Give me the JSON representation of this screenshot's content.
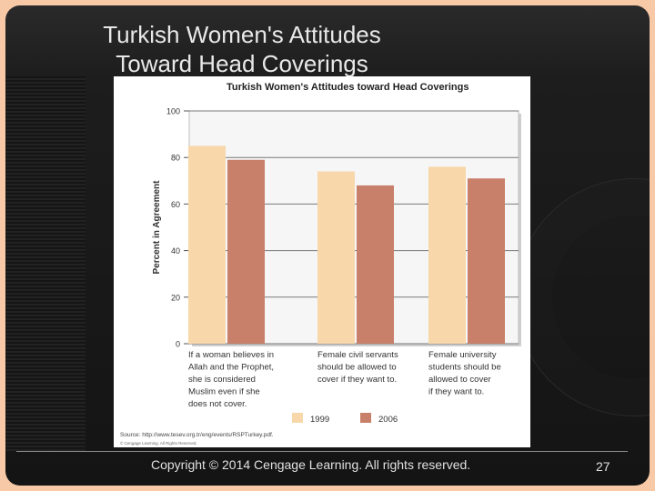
{
  "slide": {
    "title": "Turkish Women's Attitudes\nToward Head Coverings",
    "footer": "Copyright ©  2014 Cengage Learning. All rights reserved.",
    "page_number": "27"
  },
  "chart_data": {
    "type": "bar",
    "title": "Turkish Women's Attitudes toward Head Coverings",
    "ylabel": "Percent in Agreement",
    "xlabel": "",
    "ylim": [
      0,
      100
    ],
    "yticks": [
      0,
      20,
      40,
      60,
      80,
      100
    ],
    "grid": true,
    "legend_position": "bottom",
    "categories": [
      [
        "If a woman believes in",
        "Allah and the Prophet,",
        "she is considered",
        "Muslim even if she",
        "does not cover."
      ],
      [
        "Female civil servants",
        "should be allowed to",
        "cover if they want to."
      ],
      [
        "Female university",
        "students should be",
        "allowed to cover",
        "if they want to."
      ]
    ],
    "series": [
      {
        "name": "1999",
        "values": [
          85,
          74,
          76
        ],
        "color": "#f8d7aa"
      },
      {
        "name": "2006",
        "values": [
          79,
          68,
          71
        ],
        "color": "#c8806a"
      }
    ],
    "source": "Source: http://www.tesev.org.tr/eng/events/RSPTurkey.pdf.",
    "credit": "© Cengage Learning. All Rights Reserved."
  }
}
